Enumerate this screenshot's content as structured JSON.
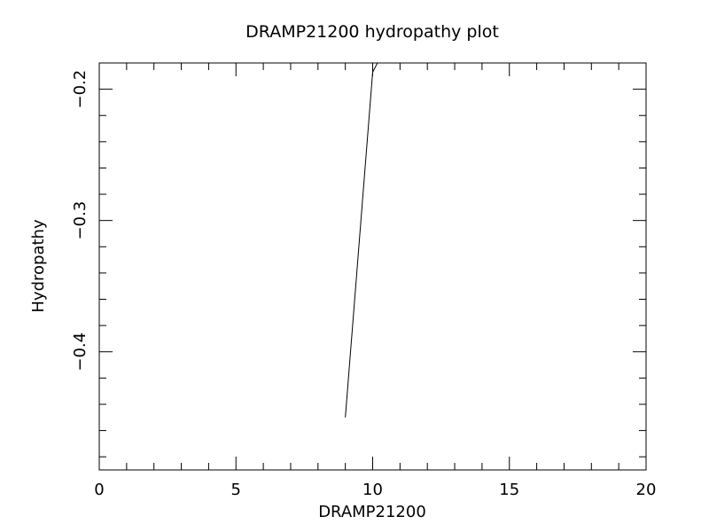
{
  "chart_data": {
    "type": "line",
    "title": "DRAMP21200 hydropathy plot",
    "xlabel": "DRAMP21200",
    "ylabel": "Hydropathy",
    "xlim": [
      0,
      20
    ],
    "ylim": [
      -0.49,
      -0.18
    ],
    "x_ticks": [
      0,
      5,
      10,
      15,
      20
    ],
    "x_tick_labels": [
      "0",
      "5",
      "10",
      "15",
      "20"
    ],
    "y_ticks": [
      -0.2,
      -0.3,
      -0.4
    ],
    "y_tick_labels": [
      "−0.2",
      "−0.3",
      "−0.4"
    ],
    "grid": false,
    "series": [
      {
        "x": [
          9.0,
          10.0,
          10.3
        ],
        "y": [
          -0.45,
          -0.187,
          -0.175
        ]
      }
    ]
  }
}
